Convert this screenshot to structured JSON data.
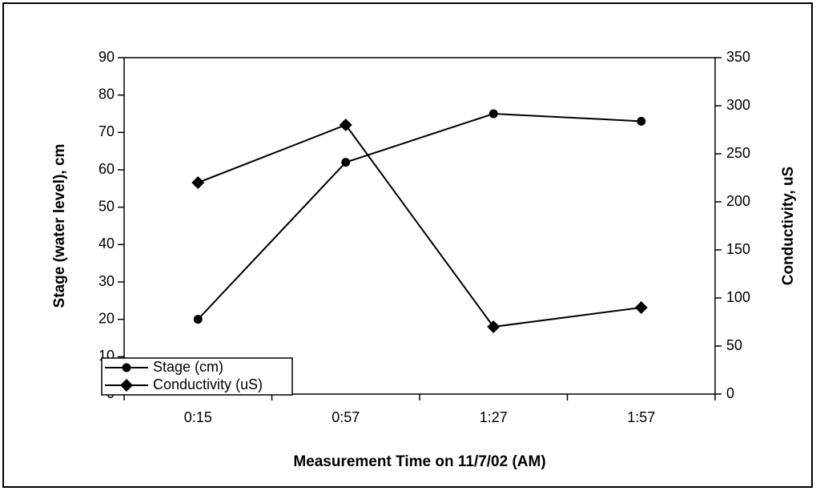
{
  "chart_data": {
    "type": "line",
    "x_label": "Measurement Time on 11/7/02 (AM)",
    "y_label": "Stage (water level), cm",
    "y2_label": "Conductivity, uS",
    "categories": [
      "0:15",
      "0:57",
      "1:27",
      "1:57"
    ],
    "series": [
      {
        "name": "Stage (cm)",
        "color": "#000000",
        "marker": "circle",
        "values": [
          20,
          62,
          75,
          73
        ]
      },
      {
        "name": "Conductivity (uS)",
        "color": "#000000",
        "marker": "diamond",
        "axis": "y2",
        "values": [
          220,
          280,
          70,
          90
        ]
      }
    ],
    "ylim": [
      0,
      90
    ],
    "yticks": [
      0,
      10,
      20,
      30,
      40,
      50,
      60,
      70,
      80,
      90
    ],
    "y2lim": [
      0,
      350
    ],
    "y2ticks": [
      0,
      50,
      100,
      150,
      200,
      250,
      300,
      350
    ],
    "legend": "lower left",
    "grid": false
  }
}
